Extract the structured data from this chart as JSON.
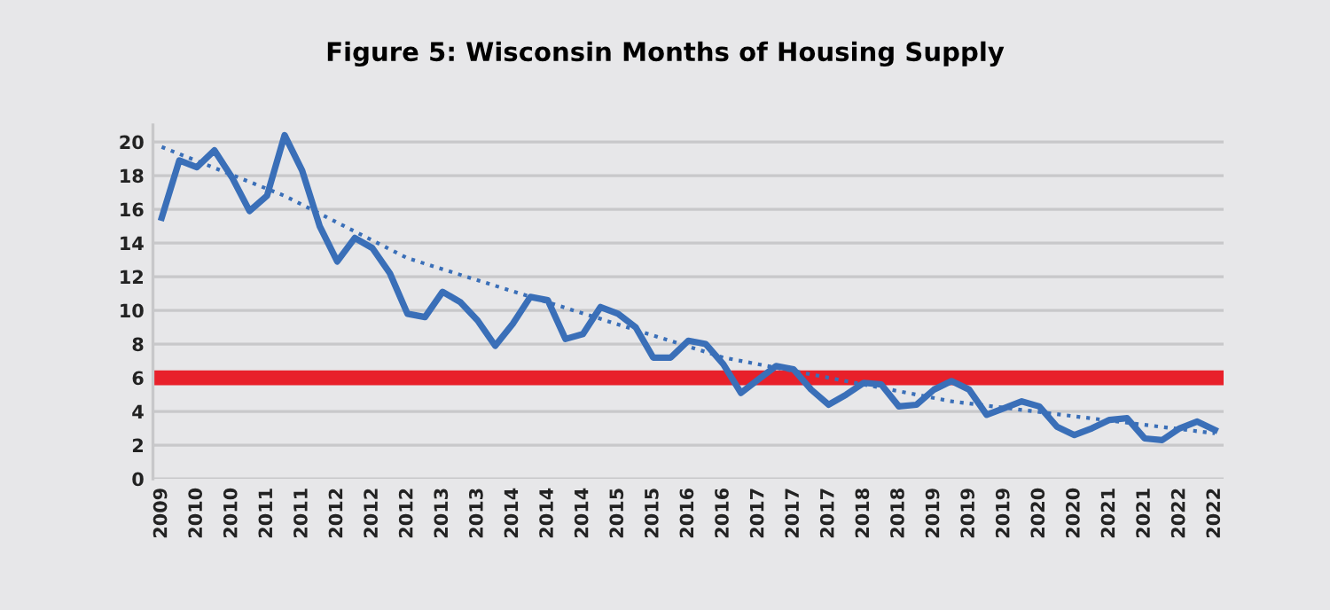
{
  "chart_data": {
    "type": "line",
    "title": "Figure 5: Wisconsin Months of Housing Supply",
    "categories": [
      "2009",
      null,
      "2010",
      null,
      "2010",
      null,
      "2011",
      null,
      "2011",
      null,
      "2012",
      null,
      "2012",
      null,
      "2012",
      null,
      "2013",
      null,
      "2013",
      null,
      "2014",
      null,
      "2014",
      null,
      "2014",
      null,
      "2015",
      null,
      "2015",
      null,
      "2016",
      null,
      "2016",
      null,
      "2017",
      null,
      "2017",
      null,
      "2017",
      null,
      "2018",
      null,
      "2018",
      null,
      "2019",
      null,
      "2019",
      null,
      "2019",
      null,
      "2020",
      null,
      "2020",
      null,
      "2021",
      null,
      "2021",
      null,
      "2022",
      null,
      "2022"
    ],
    "series": [
      {
        "color": "#3a6fb8",
        "line_style": "solid",
        "values": [
          15.5,
          18.9,
          18.5,
          19.5,
          17.9,
          15.9,
          16.8,
          20.4,
          18.3,
          15.0,
          12.9,
          14.3,
          13.7,
          12.2,
          9.8,
          9.6,
          11.1,
          10.5,
          9.4,
          7.9,
          9.2,
          10.8,
          10.6,
          8.3,
          8.6,
          10.2,
          9.8,
          9.0,
          7.2,
          7.2,
          8.2,
          8.0,
          6.8,
          5.1,
          5.9,
          6.7,
          6.5,
          5.3,
          4.4,
          5.0,
          5.7,
          5.6,
          4.3,
          4.4,
          5.3,
          5.8,
          5.3,
          3.8,
          4.2,
          4.6,
          4.3,
          3.1,
          2.6,
          3.0,
          3.5,
          3.6,
          2.4,
          2.3,
          3.0,
          3.4,
          2.9
        ]
      },
      {
        "color": "#3a6fb8",
        "line_style": "dotted",
        "values": [
          19.7,
          null,
          null,
          null,
          null,
          null,
          null,
          16.8,
          null,
          null,
          null,
          null,
          null,
          null,
          13.1,
          null,
          null,
          null,
          null,
          null,
          null,
          null,
          null,
          null,
          null,
          null,
          null,
          null,
          null,
          null,
          null,
          null,
          7.2,
          null,
          null,
          null,
          null,
          null,
          null,
          null,
          null,
          null,
          null,
          null,
          null,
          4.6,
          null,
          null,
          null,
          null,
          null,
          null,
          null,
          null,
          null,
          null,
          null,
          null,
          null,
          null,
          2.7
        ]
      }
    ],
    "ylim": [
      0,
      21
    ],
    "yticks": [
      0,
      2,
      4,
      6,
      8,
      10,
      12,
      14,
      16,
      18,
      20
    ],
    "grid": "y",
    "ref_lines": [
      {
        "axis": "y",
        "value": 6,
        "color": "#e8202a"
      }
    ]
  }
}
